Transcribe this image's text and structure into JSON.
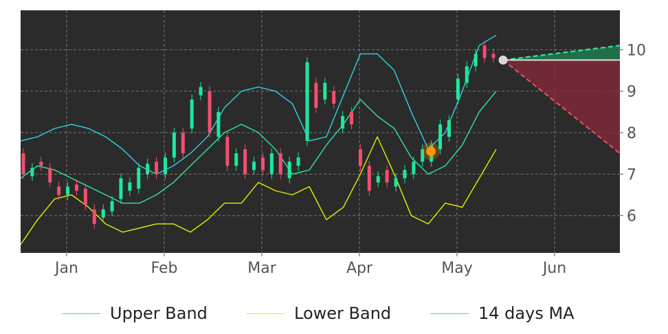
{
  "chart_data": {
    "type": "candlestick",
    "x_tick_labels": [
      "Jan",
      "Feb",
      "Mar",
      "Apr",
      "May",
      "Jun"
    ],
    "y_tick_labels": [
      "6",
      "7",
      "8",
      "9",
      "10"
    ],
    "ylim": [
      5.1,
      10.95
    ],
    "grid": true,
    "legend_position": "bottom",
    "colors": {
      "background": "#2b2b2b",
      "grid": "#8a8a8a",
      "upper": "#2fd4e8",
      "lower": "#e6f000",
      "ma": "#2ee8a0",
      "up_candle": "#1ee89c",
      "down_candle": "#f0506e",
      "projection_up": "#1e7a4e",
      "projection_down": "#8a2a3a",
      "marker": "#ff9500",
      "current_marker": "#d8d8d8"
    },
    "series": [
      {
        "name": "Upper Band",
        "values": [
          7.8,
          7.9,
          8.1,
          8.2,
          8.1,
          7.9,
          7.6,
          7.2,
          7.0,
          7.2,
          7.5,
          7.9,
          8.6,
          9.0,
          9.1,
          9.0,
          8.7,
          7.8,
          7.9,
          8.9,
          9.9,
          9.9,
          9.5,
          8.5,
          7.6,
          8.0,
          9.0,
          10.1,
          10.35
        ]
      },
      {
        "name": "Lower Band",
        "values": [
          5.3,
          5.9,
          6.4,
          6.5,
          6.2,
          5.8,
          5.6,
          5.7,
          5.8,
          5.8,
          5.6,
          5.9,
          6.3,
          6.3,
          6.8,
          6.6,
          6.5,
          6.7,
          5.9,
          6.2,
          7.0,
          7.9,
          7.0,
          6.0,
          5.8,
          6.3,
          6.2,
          6.9,
          7.6
        ]
      },
      {
        "name": "14 days MA",
        "values": [
          6.9,
          7.2,
          7.1,
          6.9,
          6.7,
          6.5,
          6.3,
          6.3,
          6.5,
          6.8,
          7.2,
          7.6,
          8.0,
          8.2,
          8.0,
          7.6,
          7.0,
          7.1,
          7.7,
          8.2,
          8.8,
          8.4,
          8.1,
          7.4,
          7.0,
          7.2,
          7.7,
          8.5,
          9.0
        ]
      }
    ],
    "candles": [
      {
        "o": 7.5,
        "c": 7.0
      },
      {
        "o": 6.95,
        "c": 7.15
      },
      {
        "o": 7.3,
        "c": 7.2
      },
      {
        "o": 7.15,
        "c": 6.8
      },
      {
        "o": 6.7,
        "c": 6.5
      },
      {
        "o": 6.5,
        "c": 6.7
      },
      {
        "o": 6.75,
        "c": 6.6
      },
      {
        "o": 6.65,
        "c": 6.25
      },
      {
        "o": 6.15,
        "c": 5.8
      },
      {
        "o": 5.95,
        "c": 6.15
      },
      {
        "o": 6.1,
        "c": 6.35
      },
      {
        "o": 6.4,
        "c": 6.9
      },
      {
        "o": 6.6,
        "c": 6.8
      },
      {
        "o": 6.65,
        "c": 7.15
      },
      {
        "o": 7.0,
        "c": 7.25
      },
      {
        "o": 7.3,
        "c": 7.0
      },
      {
        "o": 7.0,
        "c": 7.4
      },
      {
        "o": 7.4,
        "c": 8.0
      },
      {
        "o": 8.0,
        "c": 7.5
      },
      {
        "o": 8.1,
        "c": 8.8
      },
      {
        "o": 8.9,
        "c": 9.1
      },
      {
        "o": 9.0,
        "c": 8.0
      },
      {
        "o": 7.9,
        "c": 8.5
      },
      {
        "o": 7.9,
        "c": 7.2
      },
      {
        "o": 7.2,
        "c": 7.5
      },
      {
        "o": 7.6,
        "c": 7.0
      },
      {
        "o": 7.1,
        "c": 7.3
      },
      {
        "o": 7.4,
        "c": 7.1
      },
      {
        "o": 7.0,
        "c": 7.5
      },
      {
        "o": 7.5,
        "c": 7.0
      },
      {
        "o": 6.9,
        "c": 7.3
      },
      {
        "o": 7.2,
        "c": 7.4
      },
      {
        "o": 7.8,
        "c": 9.7
      },
      {
        "o": 9.2,
        "c": 8.6
      },
      {
        "o": 8.8,
        "c": 9.2
      },
      {
        "o": 9.0,
        "c": 8.7
      },
      {
        "o": 8.1,
        "c": 8.4
      },
      {
        "o": 8.5,
        "c": 8.2
      },
      {
        "o": 7.6,
        "c": 7.2
      },
      {
        "o": 7.2,
        "c": 6.6
      },
      {
        "o": 6.8,
        "c": 6.95
      },
      {
        "o": 7.1,
        "c": 6.8
      },
      {
        "o": 6.7,
        "c": 6.9
      },
      {
        "o": 6.9,
        "c": 7.1
      },
      {
        "o": 7.0,
        "c": 7.3
      },
      {
        "o": 7.3,
        "c": 7.6
      },
      {
        "o": 7.3,
        "c": 7.7
      },
      {
        "o": 7.6,
        "c": 8.2
      },
      {
        "o": 7.9,
        "c": 8.3
      },
      {
        "o": 8.8,
        "c": 9.3
      },
      {
        "o": 9.2,
        "c": 9.6
      },
      {
        "o": 9.6,
        "c": 9.9
      },
      {
        "o": 10.1,
        "c": 9.8
      },
      {
        "o": 9.9,
        "c": 9.8
      }
    ],
    "signal_marker_value": 7.55,
    "current_value": 9.75,
    "projection": {
      "upper_end": 10.1,
      "lower_end": 7.5
    }
  },
  "legend": {
    "items": [
      {
        "label": "Upper Band"
      },
      {
        "label": "Lower Band"
      },
      {
        "label": "14 days MA"
      }
    ]
  }
}
